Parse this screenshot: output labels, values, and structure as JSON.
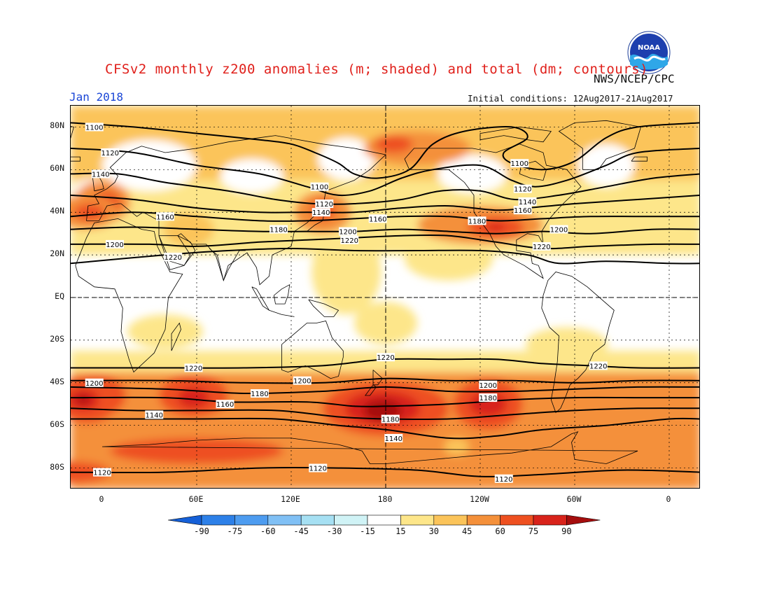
{
  "header": {
    "title": "CFSv2 monthly z200 anomalies (m; shaded) and total (dm; contours)",
    "agency": "NWS/NCEP/CPC",
    "logo_text": "NOAA",
    "month": "Jan 2018",
    "initial_conditions": "Initial conditions: 12Aug2017-21Aug2017"
  },
  "axes": {
    "lat_labels": [
      "80N",
      "60N",
      "40N",
      "20N",
      "EQ",
      "20S",
      "40S",
      "60S",
      "80S"
    ],
    "lon_labels": [
      "0",
      "60E",
      "120E",
      "180",
      "120W",
      "60W",
      "0"
    ]
  },
  "colorbar": {
    "labels": [
      "-90",
      "-75",
      "-60",
      "-45",
      "-30",
      "-15",
      "15",
      "30",
      "45",
      "60",
      "75",
      "90"
    ],
    "colors": [
      "#1560d8",
      "#2d80e8",
      "#4d9cf0",
      "#80c0f5",
      "#a6e0f3",
      "#d0f3f6",
      "#ffffff",
      "#fde68a",
      "#fbc45a",
      "#f4903a",
      "#ee5020",
      "#d8231b",
      "#a50d0d"
    ]
  },
  "contour_labels": [
    {
      "text": "1100",
      "lon": -5,
      "lat": 80
    },
    {
      "text": "1120",
      "lon": 5,
      "lat": 68
    },
    {
      "text": "1140",
      "lon": -1,
      "lat": 58
    },
    {
      "text": "1160",
      "lon": 40,
      "lat": 38
    },
    {
      "text": "1180",
      "lon": 112,
      "lat": 32
    },
    {
      "text": "1200",
      "lon": 8,
      "lat": 25
    },
    {
      "text": "1220",
      "lon": 45,
      "lat": 19
    },
    {
      "text": "1100",
      "lon": 138,
      "lat": 52
    },
    {
      "text": "1120",
      "lon": 141,
      "lat": 44
    },
    {
      "text": "1140",
      "lon": 139,
      "lat": 40
    },
    {
      "text": "1160",
      "lon": 175,
      "lat": 37
    },
    {
      "text": "1200",
      "lon": 156,
      "lat": 31
    },
    {
      "text": "1220",
      "lon": 157,
      "lat": 27
    },
    {
      "text": "1100",
      "lon": -95,
      "lat": 63
    },
    {
      "text": "1120",
      "lon": -93,
      "lat": 51
    },
    {
      "text": "1140",
      "lon": -90,
      "lat": 45
    },
    {
      "text": "1160",
      "lon": -93,
      "lat": 41
    },
    {
      "text": "1180",
      "lon": -122,
      "lat": 36
    },
    {
      "text": "1200",
      "lon": -70,
      "lat": 32
    },
    {
      "text": "1220",
      "lon": -81,
      "lat": 24
    },
    {
      "text": "1220",
      "lon": 180,
      "lat": -28
    },
    {
      "text": "1220",
      "lon": -45,
      "lat": -32
    },
    {
      "text": "1220",
      "lon": 58,
      "lat": -33
    },
    {
      "text": "1200",
      "lon": -5,
      "lat": -40
    },
    {
      "text": "1200",
      "lon": 127,
      "lat": -39
    },
    {
      "text": "1200",
      "lon": -115,
      "lat": -41
    },
    {
      "text": "1180",
      "lon": 100,
      "lat": -45
    },
    {
      "text": "1180",
      "lon": -115,
      "lat": -47
    },
    {
      "text": "1160",
      "lon": 78,
      "lat": -50
    },
    {
      "text": "1180",
      "lon": -177,
      "lat": -57
    },
    {
      "text": "1140",
      "lon": 33,
      "lat": -55
    },
    {
      "text": "1140",
      "lon": -175,
      "lat": -66
    },
    {
      "text": "1120",
      "lon": 0,
      "lat": -82
    },
    {
      "text": "1120",
      "lon": 137,
      "lat": -80
    },
    {
      "text": "1120",
      "lon": -105,
      "lat": -85
    }
  ]
}
